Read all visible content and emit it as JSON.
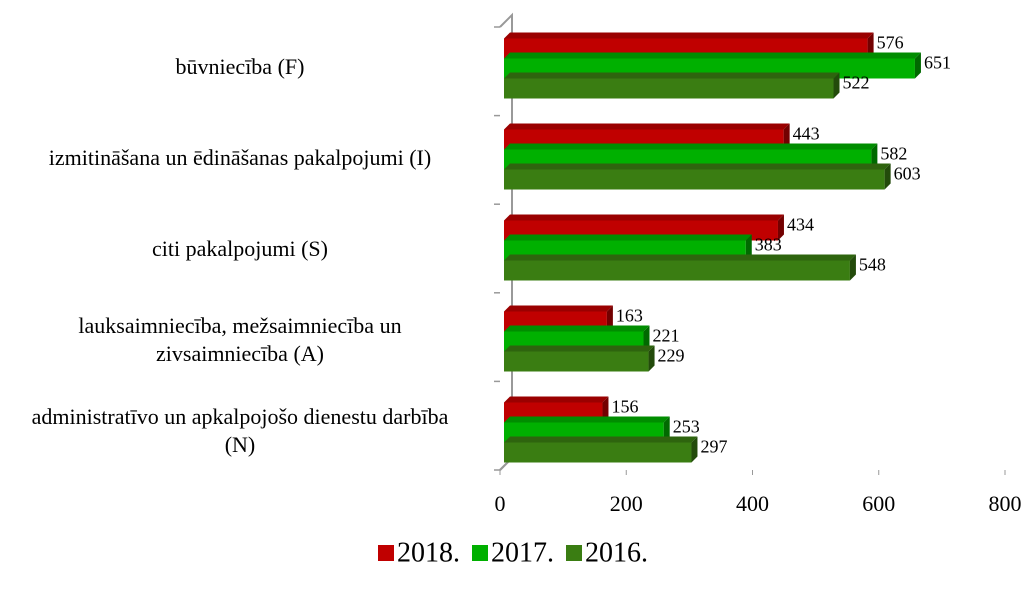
{
  "chart_data": {
    "type": "bar",
    "orientation": "horizontal",
    "categories": [
      "būvniecība (F)",
      "izmitināšana un ēdināšanas pakalpojumi (I)",
      "citi pakalpojumi (S)",
      "lauksaimniecība,  mežsaimniecība un zivsaimniecība (A)",
      "administratīvo un apkalpojošo dienestu darbība (N)"
    ],
    "series": [
      {
        "name": "2018.",
        "color": "#c00000",
        "values": [
          576,
          443,
          434,
          163,
          156
        ]
      },
      {
        "name": "2017.",
        "color": "#00b000",
        "values": [
          651,
          582,
          383,
          221,
          253
        ]
      },
      {
        "name": "2016.",
        "color": "#3a7d12",
        "values": [
          522,
          603,
          548,
          229,
          297
        ]
      }
    ],
    "xlim": [
      0,
      800
    ],
    "xticks": [
      0,
      200,
      400,
      600,
      800
    ],
    "legend": "bottom"
  }
}
